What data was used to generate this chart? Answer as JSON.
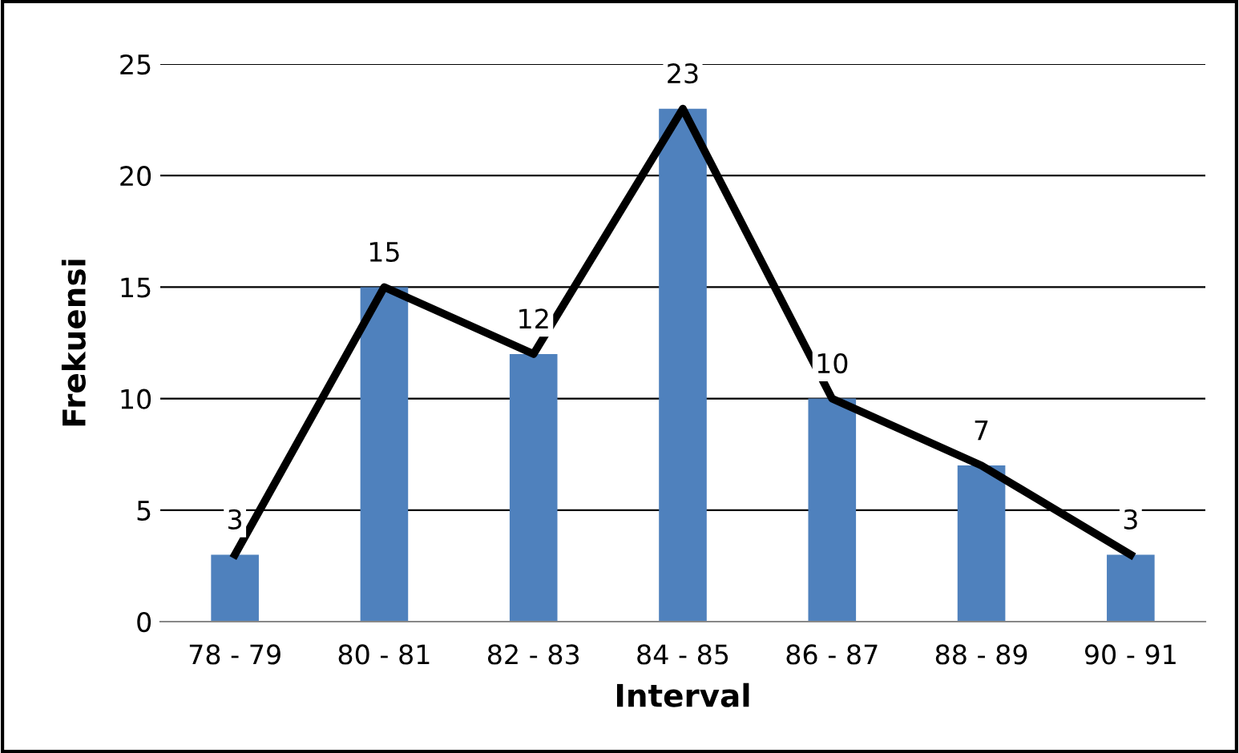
{
  "chart_data": {
    "type": "bar",
    "xlabel": "Interval",
    "ylabel": "Frekuensi",
    "categories": [
      "78 - 79",
      "80 - 81",
      "82 - 83",
      "84 - 85",
      "86 - 87",
      "88 - 89",
      "90 - 91"
    ],
    "series": [
      {
        "color": "#4f81bd",
        "values": [
          3,
          15,
          12,
          23,
          10,
          7,
          3
        ],
        "value_labels": [
          "3",
          "15",
          "12",
          "23",
          "10",
          "7",
          "3"
        ]
      },
      {
        "type": "line",
        "color": "#000000",
        "values": [
          3,
          15,
          12,
          23,
          10,
          7,
          3
        ]
      }
    ],
    "ylim": [
      0,
      25
    ],
    "yticks": [
      0,
      5,
      10,
      15,
      20,
      25
    ],
    "grid": "y",
    "legend": false,
    "marker": "none",
    "line_style": "solid"
  }
}
